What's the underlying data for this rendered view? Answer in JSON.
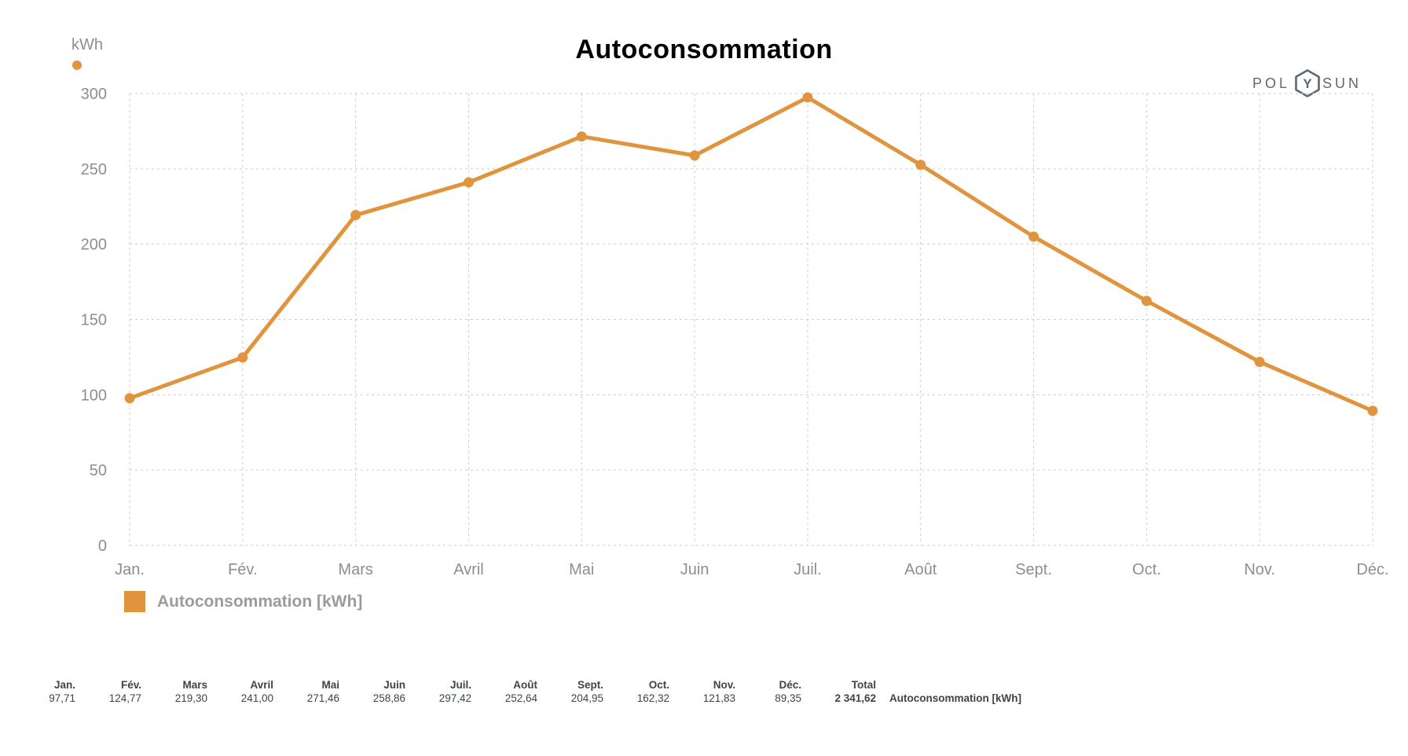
{
  "header": {
    "title": "Autoconsommation"
  },
  "y_axis": {
    "unit_label": "kWh"
  },
  "logo": {
    "part1": "POL",
    "symbol_letter": "Y",
    "part2": "SUN"
  },
  "chart_data": {
    "type": "line",
    "title": "Autoconsommation",
    "ylabel": "kWh",
    "xlabel": "",
    "categories": [
      "Jan.",
      "Fév.",
      "Mars",
      "Avril",
      "Mai",
      "Juin",
      "Juil.",
      "Août",
      "Sept.",
      "Oct.",
      "Nov.",
      "Déc."
    ],
    "series": [
      {
        "name": "Autoconsommation [kWh]",
        "values": [
          97.71,
          124.77,
          219.3,
          241.0,
          271.46,
          258.86,
          297.42,
          252.64,
          204.95,
          162.32,
          121.83,
          89.35
        ],
        "color": "#E0943E"
      }
    ],
    "total": 2341.62,
    "ylim": [
      0,
      300
    ],
    "yticks": [
      0,
      50,
      100,
      150,
      200,
      250,
      300
    ],
    "grid": "dashed",
    "legend_position": "bottom-left"
  },
  "legend": {
    "items": [
      {
        "label": "Autoconsommation [kWh]",
        "color": "#E0943E"
      }
    ]
  },
  "summary_table": {
    "months": [
      {
        "label": "Jan.",
        "value": "97,71"
      },
      {
        "label": "Fév.",
        "value": "124,77"
      },
      {
        "label": "Mars",
        "value": "219,30"
      },
      {
        "label": "Avril",
        "value": "241,00"
      },
      {
        "label": "Mai",
        "value": "271,46"
      },
      {
        "label": "Juin",
        "value": "258,86"
      },
      {
        "label": "Juil.",
        "value": "297,42"
      },
      {
        "label": "Août",
        "value": "252,64"
      },
      {
        "label": "Sept.",
        "value": "204,95"
      },
      {
        "label": "Oct.",
        "value": "162,32"
      },
      {
        "label": "Nov.",
        "value": "121,83"
      },
      {
        "label": "Déc.",
        "value": "89,35"
      }
    ],
    "total": {
      "label": "Total",
      "value": "2 341,62"
    },
    "row_label": "Autoconsommation [kWh]"
  },
  "colors": {
    "accent": "#E0943E",
    "grid": "#CBCBCB",
    "axis_text": "#8E8E8E",
    "legend_text": "#9B9B9B",
    "table_text": "#3F4448",
    "logo": "#5D6870",
    "title": "#000000"
  }
}
